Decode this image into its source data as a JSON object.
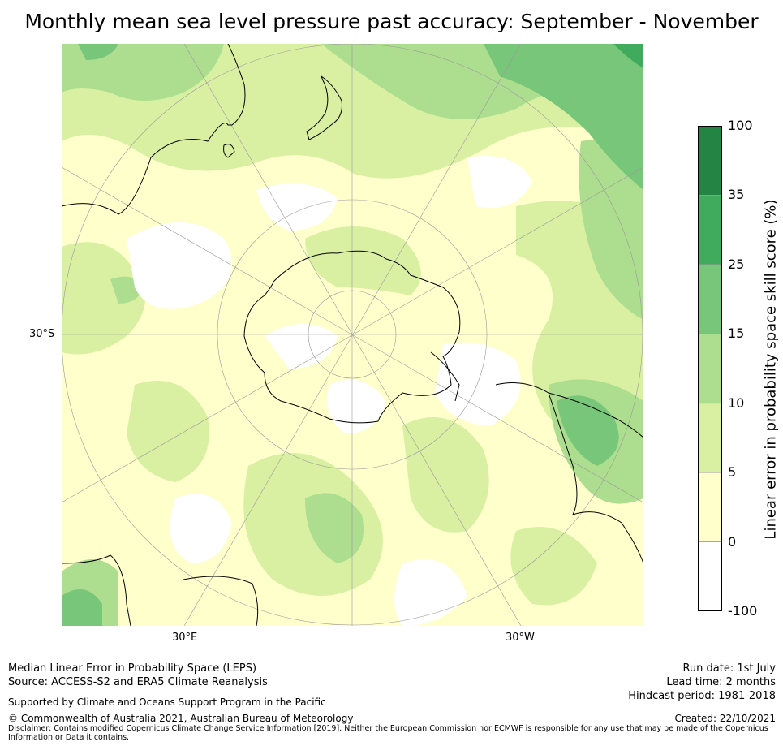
{
  "title": "Monthly mean sea level pressure past accuracy: September - November",
  "map": {
    "projection": "south-polar-stereographic",
    "parallel_label": "30°S",
    "meridian_labels": {
      "left": "30°E",
      "right": "30°W"
    },
    "landmasses": [
      "Antarctica",
      "Australia",
      "New Zealand",
      "South America",
      "Africa",
      "Madagascar"
    ]
  },
  "colorbar": {
    "label": "Linear error in probability space skill score (%)",
    "ticks": [
      "-100",
      "0",
      "5",
      "10",
      "15",
      "25",
      "35",
      "100"
    ],
    "bins": [
      {
        "range": "-100 to 0",
        "color": "#ffffff"
      },
      {
        "range": "0 to 5",
        "color": "#ffffcc"
      },
      {
        "range": "5 to 10",
        "color": "#d9f0a3"
      },
      {
        "range": "10 to 15",
        "color": "#addd8e"
      },
      {
        "range": "15 to 25",
        "color": "#78c679"
      },
      {
        "range": "25 to 35",
        "color": "#41ab5d"
      },
      {
        "range": "35 to 100",
        "color": "#238443"
      }
    ]
  },
  "footer": {
    "left": {
      "line1": "Median Linear Error in Probability Space (LEPS)",
      "line2": "Source: ACCESS-S2 and ERA5 Climate Reanalysis",
      "support": "Supported by Climate and Oceans Support Program in the Pacific",
      "copyright": "© Commonwealth of Australia 2021, Australian Bureau of Meteorology",
      "disclaimer": "Disclaimer: Contains modified Copernicus Climate Change Service Information [2019]. Neither the European Commission nor ECMWF is responsible for any use that may be made of the Copernicus Information or Data it contains."
    },
    "right": {
      "run_date": "Run date: 1st July",
      "lead_time": "Lead time: 2 months",
      "hindcast": "Hindcast period: 1981-2018",
      "created": "Created: 22/10/2021"
    }
  }
}
